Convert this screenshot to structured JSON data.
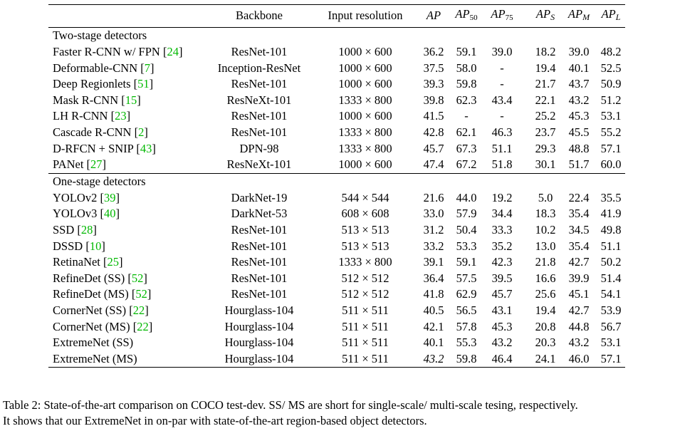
{
  "header": {
    "backbone": "Backbone",
    "input_resolution": "Input resolution",
    "ap": "AP",
    "ap50_base": "AP",
    "ap50_sub": "50",
    "ap75_base": "AP",
    "ap75_sub": "75",
    "aps_base": "AP",
    "aps_sub": "S",
    "apm_base": "AP",
    "apm_sub": "M",
    "apl_base": "AP",
    "apl_sub": "L"
  },
  "groups": [
    {
      "title": "Two-stage detectors",
      "rows": [
        {
          "name": "Faster R-CNN w/ FPN",
          "cite": "24",
          "backbone": "ResNet-101",
          "res": "1000 × 600",
          "ap": "36.2",
          "ap50": "59.1",
          "ap75": "39.0",
          "aps": "18.2",
          "apm": "39.0",
          "apl": "48.2"
        },
        {
          "name": "Deformable-CNN",
          "cite": "7",
          "backbone": "Inception-ResNet",
          "res": "1000 × 600",
          "ap": "37.5",
          "ap50": "58.0",
          "ap75": "-",
          "aps": "19.4",
          "apm": "40.1",
          "apl": "52.5"
        },
        {
          "name": "Deep Regionlets",
          "cite": "51",
          "backbone": "ResNet-101",
          "res": "1000 × 600",
          "ap": "39.3",
          "ap50": "59.8",
          "ap75": "-",
          "aps": "21.7",
          "apm": "43.7",
          "apl": "50.9"
        },
        {
          "name": "Mask R-CNN",
          "cite": "15",
          "backbone": "ResNeXt-101",
          "res": "1333 × 800",
          "ap": "39.8",
          "ap50": "62.3",
          "ap75": "43.4",
          "aps": "22.1",
          "apm": "43.2",
          "apl": "51.2"
        },
        {
          "name": "LH R-CNN",
          "cite": "23",
          "backbone": "ResNet-101",
          "res": "1000 × 600",
          "ap": "41.5",
          "ap50": "-",
          "ap75": "-",
          "aps": "25.2",
          "apm": "45.3",
          "apl": "53.1"
        },
        {
          "name": "Cascade R-CNN",
          "cite": "2",
          "backbone": "ResNet-101",
          "res": "1333 × 800",
          "ap": "42.8",
          "ap50": "62.1",
          "ap75": "46.3",
          "aps": "23.7",
          "apm": "45.5",
          "apl": "55.2"
        },
        {
          "name": "D-RFCN + SNIP",
          "cite": "43",
          "backbone": "DPN-98",
          "res": "1333 × 800",
          "ap": "45.7",
          "ap50": "67.3",
          "ap75": "51.1",
          "aps": "29.3",
          "apm": "48.8",
          "apl": "57.1"
        },
        {
          "name": "PANet",
          "cite": "27",
          "backbone": "ResNeXt-101",
          "res": "1000 × 600",
          "ap": "47.4",
          "ap50": "67.2",
          "ap75": "51.8",
          "aps": "30.1",
          "apm": "51.7",
          "apl": "60.0"
        }
      ]
    },
    {
      "title": "One-stage detectors",
      "rows": [
        {
          "name": "YOLOv2",
          "cite": "39",
          "backbone": "DarkNet-19",
          "res": "544 × 544",
          "ap": "21.6",
          "ap50": "44.0",
          "ap75": "19.2",
          "aps": "5.0",
          "apm": "22.4",
          "apl": "35.5"
        },
        {
          "name": "YOLOv3",
          "cite": "40",
          "backbone": "DarkNet-53",
          "res": "608 × 608",
          "ap": "33.0",
          "ap50": "57.9",
          "ap75": "34.4",
          "aps": "18.3",
          "apm": "35.4",
          "apl": "41.9"
        },
        {
          "name": "SSD",
          "cite": "28",
          "backbone": "ResNet-101",
          "res": "513 × 513",
          "ap": "31.2",
          "ap50": "50.4",
          "ap75": "33.3",
          "aps": "10.2",
          "apm": "34.5",
          "apl": "49.8"
        },
        {
          "name": "DSSD",
          "cite": "10",
          "backbone": "ResNet-101",
          "res": "513 × 513",
          "ap": "33.2",
          "ap50": "53.3",
          "ap75": "35.2",
          "aps": "13.0",
          "apm": "35.4",
          "apl": "51.1"
        },
        {
          "name": "RetinaNet",
          "cite": "25",
          "backbone": "ResNet-101",
          "res": "1333 × 800",
          "ap": "39.1",
          "ap50": "59.1",
          "ap75": "42.3",
          "aps": "21.8",
          "apm": "42.7",
          "apl": "50.2"
        },
        {
          "name": "RefineDet (SS)",
          "cite": "52",
          "backbone": "ResNet-101",
          "res": "512 × 512",
          "ap": "36.4",
          "ap50": "57.5",
          "ap75": "39.5",
          "aps": "16.6",
          "apm": "39.9",
          "apl": "51.4"
        },
        {
          "name": "RefineDet (MS)",
          "cite": "52",
          "backbone": "ResNet-101",
          "res": "512 × 512",
          "ap": "41.8",
          "ap50": "62.9",
          "ap75": "45.7",
          "aps": "25.6",
          "apm": "45.1",
          "apl": "54.1"
        },
        {
          "name": "CornerNet (SS)",
          "cite": "22",
          "backbone": "Hourglass-104",
          "res": "511 × 511",
          "ap": "40.5",
          "ap50": "56.5",
          "ap75": "43.1",
          "aps": "19.4",
          "apm": "42.7",
          "apl": "53.9"
        },
        {
          "name": "CornerNet (MS)",
          "cite": "22",
          "backbone": "Hourglass-104",
          "res": "511 × 511",
          "ap": "42.1",
          "ap50": "57.8",
          "ap75": "45.3",
          "aps": "20.8",
          "apm": "44.8",
          "apl": "56.7"
        },
        {
          "name": "ExtremeNet (SS)",
          "cite": "",
          "backbone": "Hourglass-104",
          "res": "511 × 511",
          "ap": "40.1",
          "ap50": "55.3",
          "ap75": "43.2",
          "aps": "20.3",
          "apm": "43.2",
          "apl": "53.1"
        },
        {
          "name": "ExtremeNet (MS)",
          "cite": "",
          "backbone": "Hourglass-104",
          "res": "511 × 511",
          "ap": "43.2",
          "ap50": "59.8",
          "ap75": "46.4",
          "aps": "24.1",
          "apm": "46.0",
          "apl": "57.1",
          "ap_italic": true
        }
      ]
    }
  ],
  "caption": {
    "line1": "Table 2: State-of-the-art comparison on COCO test-dev. SS/ MS are short for single-scale/ multi-scale tesing, respectively.",
    "line2": "It shows that our ExtremeNet in on-par with state-of-the-art region-based object detectors."
  },
  "colors": {
    "citation": "#00b800",
    "text": "#000000"
  }
}
